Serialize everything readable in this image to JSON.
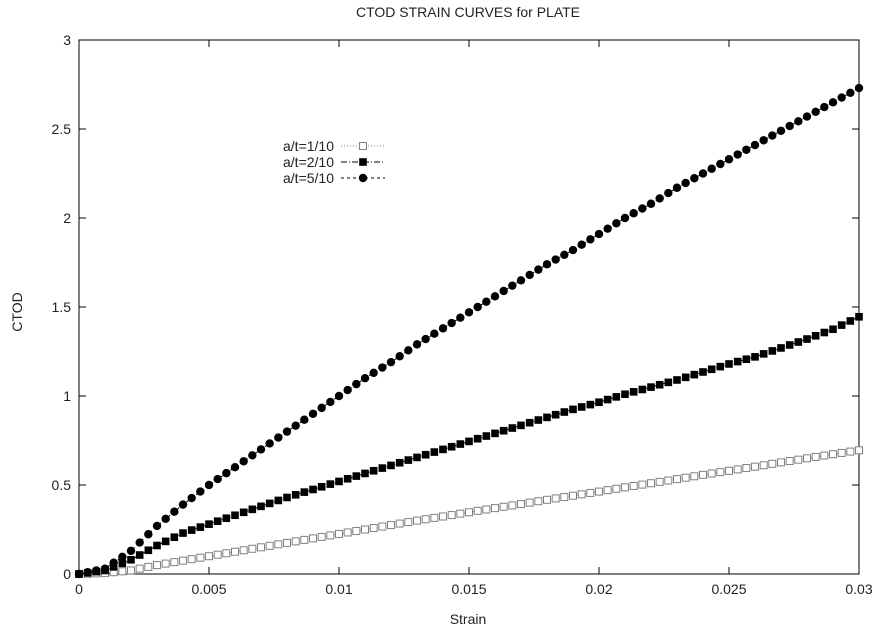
{
  "chart_data": {
    "type": "scatter",
    "title": "CTOD STRAIN CURVES for PLATE",
    "xlabel": "Strain",
    "ylabel": "CTOD",
    "xlim": [
      0,
      0.03
    ],
    "ylim": [
      0,
      3
    ],
    "xticks": [
      "0",
      "0.005",
      "0.01",
      "0.015",
      "0.02",
      "0.025",
      "0.03"
    ],
    "yticks": [
      "0",
      "0.5",
      "1",
      "1.5",
      "2",
      "2.5",
      "3"
    ],
    "grid": false,
    "legend_position": "top-left",
    "series": [
      {
        "name": "a/t=1/10",
        "marker": "open-square",
        "color": "#808080",
        "x": [
          0,
          0.001,
          0.002,
          0.003,
          0.004,
          0.005,
          0.006,
          0.007,
          0.008,
          0.009,
          0.01,
          0.011,
          0.012,
          0.013,
          0.014,
          0.015,
          0.016,
          0.017,
          0.018,
          0.019,
          0.02,
          0.021,
          0.022,
          0.023,
          0.024,
          0.025,
          0.026,
          0.027,
          0.028,
          0.029,
          0.03
        ],
        "y": [
          0,
          0.005,
          0.02,
          0.05,
          0.075,
          0.1,
          0.125,
          0.15,
          0.175,
          0.2,
          0.225,
          0.25,
          0.275,
          0.3,
          0.323,
          0.347,
          0.37,
          0.393,
          0.417,
          0.44,
          0.463,
          0.487,
          0.51,
          0.533,
          0.557,
          0.58,
          0.603,
          0.627,
          0.65,
          0.673,
          0.695
        ]
      },
      {
        "name": "a/t=2/10",
        "marker": "filled-square",
        "color": "#000000",
        "x": [
          0,
          0.001,
          0.002,
          0.003,
          0.004,
          0.005,
          0.006,
          0.007,
          0.008,
          0.009,
          0.01,
          0.011,
          0.012,
          0.013,
          0.014,
          0.015,
          0.016,
          0.017,
          0.018,
          0.019,
          0.02,
          0.021,
          0.022,
          0.023,
          0.024,
          0.025,
          0.026,
          0.027,
          0.028,
          0.029,
          0.03
        ],
        "y": [
          0,
          0.02,
          0.08,
          0.16,
          0.23,
          0.28,
          0.33,
          0.38,
          0.43,
          0.475,
          0.52,
          0.565,
          0.61,
          0.655,
          0.7,
          0.745,
          0.79,
          0.835,
          0.88,
          0.925,
          0.965,
          1.01,
          1.05,
          1.09,
          1.135,
          1.18,
          1.22,
          1.27,
          1.32,
          1.375,
          1.445
        ]
      },
      {
        "name": "a/t=5/10",
        "marker": "filled-circle",
        "color": "#000000",
        "x": [
          0,
          0.001,
          0.002,
          0.003,
          0.004,
          0.005,
          0.006,
          0.007,
          0.008,
          0.009,
          0.01,
          0.011,
          0.012,
          0.013,
          0.014,
          0.015,
          0.016,
          0.017,
          0.018,
          0.019,
          0.02,
          0.021,
          0.022,
          0.023,
          0.024,
          0.025,
          0.026,
          0.027,
          0.028,
          0.029,
          0.03
        ],
        "y": [
          0,
          0.03,
          0.13,
          0.27,
          0.39,
          0.5,
          0.6,
          0.7,
          0.8,
          0.9,
          1.0,
          1.1,
          1.19,
          1.29,
          1.38,
          1.47,
          1.56,
          1.65,
          1.74,
          1.82,
          1.91,
          2.0,
          2.08,
          2.17,
          2.25,
          2.33,
          2.41,
          2.49,
          2.57,
          2.65,
          2.73
        ]
      }
    ]
  }
}
